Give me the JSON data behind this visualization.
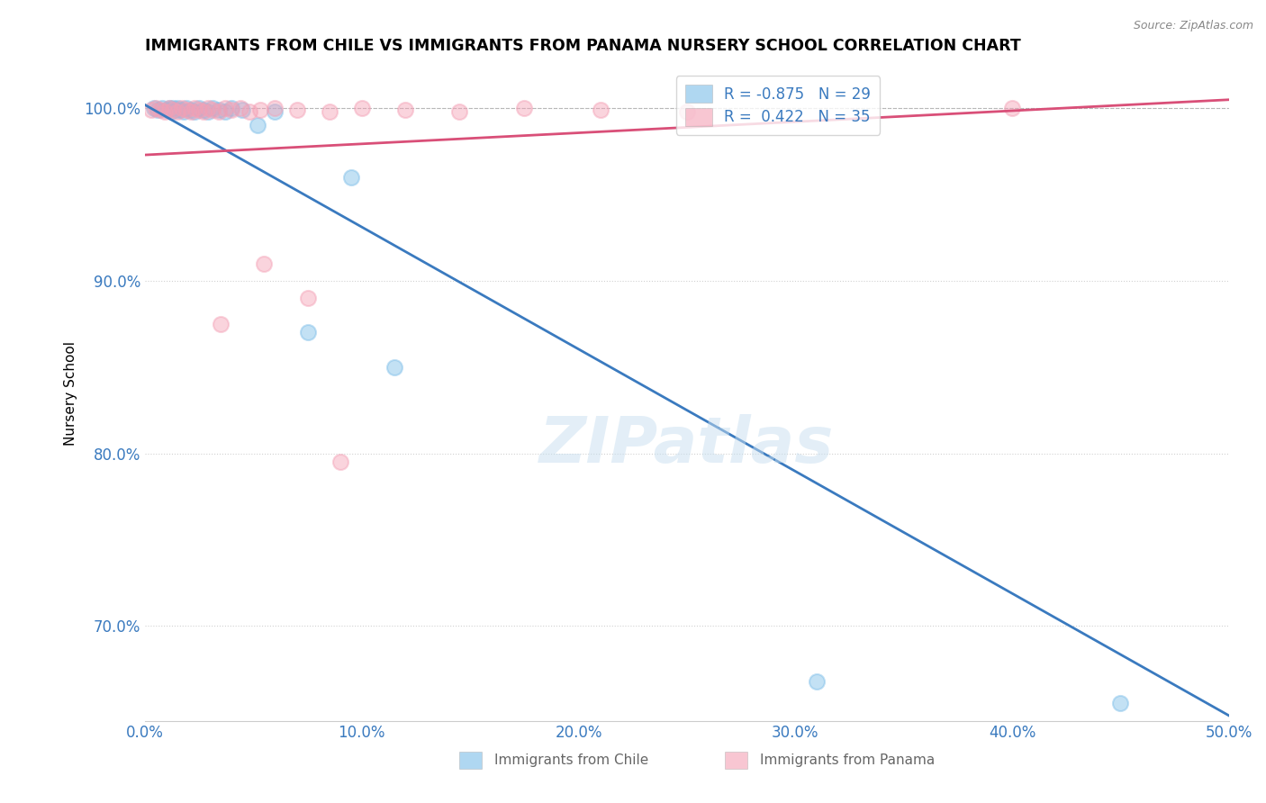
{
  "title": "IMMIGRANTS FROM CHILE VS IMMIGRANTS FROM PANAMA NURSERY SCHOOL CORRELATION CHART",
  "source": "Source: ZipAtlas.com",
  "ylabel": "Nursery School",
  "xlim": [
    0.0,
    0.5
  ],
  "ylim": [
    0.645,
    1.025
  ],
  "xtick_labels": [
    "0.0%",
    "10.0%",
    "20.0%",
    "30.0%",
    "40.0%",
    "50.0%"
  ],
  "xtick_vals": [
    0.0,
    0.1,
    0.2,
    0.3,
    0.4,
    0.5
  ],
  "ytick_labels": [
    "70.0%",
    "80.0%",
    "90.0%",
    "100.0%"
  ],
  "ytick_vals": [
    0.7,
    0.8,
    0.9,
    1.0
  ],
  "blue_R": -0.875,
  "blue_N": 29,
  "pink_R": 0.422,
  "pink_N": 35,
  "blue_color": "#7bbde8",
  "pink_color": "#f4a0b5",
  "blue_line_color": "#3a7abf",
  "pink_line_color": "#d94f78",
  "watermark": "ZIPatlas",
  "blue_legend_label": "R = -0.875   N = 29",
  "pink_legend_label": "R =  0.422   N = 35",
  "bottom_label_chile": "Immigrants from Chile",
  "bottom_label_panama": "Immigrants from Panama",
  "blue_scatter_x": [
    0.004,
    0.006,
    0.008,
    0.01,
    0.011,
    0.012,
    0.013,
    0.014,
    0.015,
    0.016,
    0.018,
    0.019,
    0.021,
    0.023,
    0.025,
    0.027,
    0.029,
    0.031,
    0.034,
    0.037,
    0.04,
    0.045,
    0.052,
    0.06,
    0.075,
    0.095,
    0.115,
    0.31,
    0.45
  ],
  "blue_scatter_y": [
    1.0,
    0.999,
    1.0,
    0.999,
    1.0,
    0.998,
    1.0,
    0.999,
    1.0,
    0.999,
    0.998,
    1.0,
    0.999,
    0.998,
    1.0,
    0.999,
    0.998,
    1.0,
    0.999,
    0.998,
    1.0,
    0.999,
    0.99,
    0.998,
    0.87,
    0.96,
    0.85,
    0.668,
    0.655
  ],
  "pink_scatter_x": [
    0.003,
    0.005,
    0.007,
    0.009,
    0.011,
    0.013,
    0.015,
    0.017,
    0.019,
    0.021,
    0.023,
    0.025,
    0.027,
    0.029,
    0.031,
    0.034,
    0.037,
    0.04,
    0.044,
    0.048,
    0.053,
    0.06,
    0.07,
    0.085,
    0.1,
    0.12,
    0.145,
    0.175,
    0.21,
    0.25,
    0.035,
    0.055,
    0.075,
    0.4,
    0.09
  ],
  "pink_scatter_y": [
    0.999,
    1.0,
    0.999,
    0.998,
    1.0,
    0.999,
    0.998,
    1.0,
    0.999,
    0.998,
    1.0,
    0.999,
    0.998,
    1.0,
    0.999,
    0.998,
    1.0,
    0.999,
    1.0,
    0.998,
    0.999,
    1.0,
    0.999,
    0.998,
    1.0,
    0.999,
    0.998,
    1.0,
    0.999,
    0.998,
    0.875,
    0.91,
    0.89,
    1.0,
    0.795
  ],
  "blue_line_x": [
    0.0,
    0.5
  ],
  "blue_line_y": [
    1.002,
    0.648
  ],
  "pink_line_x": [
    0.0,
    0.5
  ],
  "pink_line_y": [
    0.973,
    1.005
  ]
}
